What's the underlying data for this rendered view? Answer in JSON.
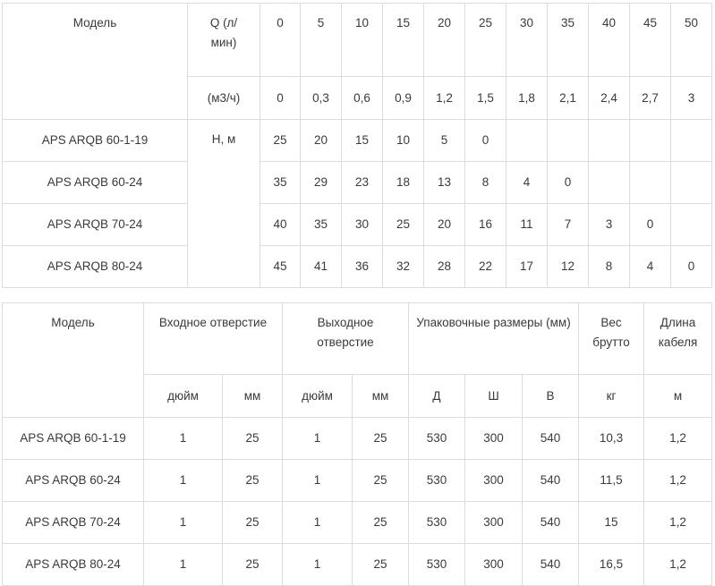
{
  "table1": {
    "model_label": "Модель",
    "q_label": "Q  (л/мин)",
    "q_lmin": [
      "0",
      "5",
      "10",
      "15",
      "20",
      "25",
      "30",
      "35",
      "40",
      "45",
      "50"
    ],
    "q_unit": "(м3/ч)",
    "q_m3h": [
      "0",
      "0,3",
      "0,6",
      "0,9",
      "1,2",
      "1,5",
      "1,8",
      "2,1",
      "2,4",
      "2,7",
      "3"
    ],
    "h_label": "H, м",
    "rows": [
      {
        "model": "APS ARQB 60-1-19",
        "values": [
          "25",
          "20",
          "15",
          "10",
          "5",
          "0",
          "",
          "",
          "",
          "",
          ""
        ]
      },
      {
        "model": "APS ARQB 60-24",
        "values": [
          "35",
          "29",
          "23",
          "18",
          "13",
          "8",
          "4",
          "0",
          "",
          "",
          ""
        ]
      },
      {
        "model": "APS ARQB 70-24",
        "values": [
          "40",
          "35",
          "30",
          "25",
          "20",
          "16",
          "11",
          "7",
          "3",
          "0",
          ""
        ]
      },
      {
        "model": "APS ARQB 80-24",
        "values": [
          "45",
          "41",
          "36",
          "32",
          "28",
          "22",
          "17",
          "12",
          "8",
          "4",
          "0"
        ]
      }
    ]
  },
  "table2": {
    "model_label": "Модель",
    "inlet_label": "Входное отверстие",
    "outlet_label": "Выходное отверстие",
    "pack_label": "Упаковочные размеры (мм)",
    "weight_label": "Вес брутто",
    "cable_label": "Длина кабеля",
    "units": {
      "inlet_inch": "дюйм",
      "inlet_mm": "мм",
      "outlet_inch": "дюйм",
      "outlet_mm": "мм",
      "d": "Д",
      "w": "Ш",
      "h": "В",
      "weight": "кг",
      "cable": "м"
    },
    "rows": [
      {
        "model": "APS ARQB 60-1-19",
        "values": [
          "1",
          "25",
          "1",
          "25",
          "530",
          "300",
          "540",
          "10,3",
          "1,2"
        ]
      },
      {
        "model": "APS ARQB 60-24",
        "values": [
          "1",
          "25",
          "1",
          "25",
          "530",
          "300",
          "540",
          "11,5",
          "1,2"
        ]
      },
      {
        "model": "APS ARQB 70-24",
        "values": [
          "1",
          "25",
          "1",
          "25",
          "530",
          "300",
          "540",
          "15",
          "1,2"
        ]
      },
      {
        "model": "APS ARQB 80-24",
        "values": [
          "1",
          "25",
          "1",
          "25",
          "530",
          "300",
          "540",
          "16,5",
          "1,2"
        ]
      }
    ]
  }
}
